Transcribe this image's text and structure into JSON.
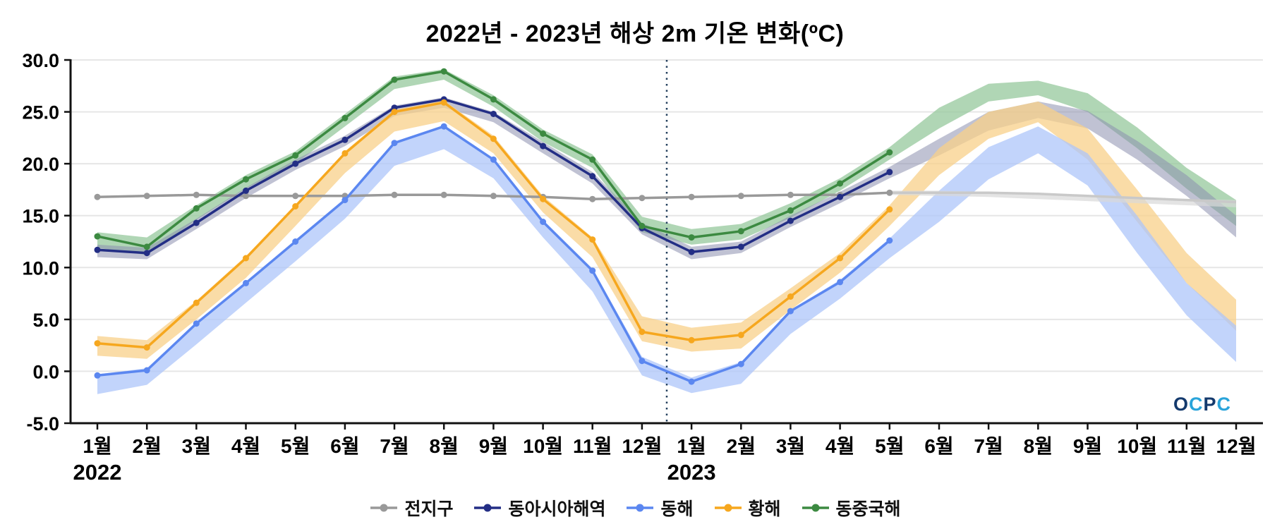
{
  "title": "2022년 - 2023년 해상 2m 기온 변화(ºC)",
  "watermark": "OCPC",
  "watermark_colors": [
    "#143a6d",
    "#2aa4da",
    "#143a6d",
    "#2aa4da"
  ],
  "chart_data": {
    "type": "line",
    "title": "2022년 - 2023년 해상 2m 기온 변화(ºC)",
    "ylim": [
      -5,
      30
    ],
    "y_ticks": [
      30,
      25,
      20,
      15,
      10,
      5,
      0,
      -5
    ],
    "grid": true,
    "legend_position": "bottom",
    "divider_index": 11.5,
    "x_tick_labels": [
      "1월",
      "2월",
      "3월",
      "4월",
      "5월",
      "6월",
      "7월",
      "8월",
      "9월",
      "10월",
      "11월",
      "12월",
      "1월",
      "2월",
      "3월",
      "4월",
      "5월",
      "6월",
      "7월",
      "8월",
      "9월",
      "10월",
      "11월",
      "12월"
    ],
    "year_labels": [
      {
        "label": "2022",
        "index": 0
      },
      {
        "label": "2023",
        "index": 12
      }
    ],
    "series": [
      {
        "id": "global",
        "name": "전지구",
        "color": "#999999",
        "forecast_color": "#c9c9c9",
        "band_color": "#d9d9d9",
        "band_opacity": 0.7,
        "values": [
          16.8,
          16.9,
          17.0,
          16.9,
          16.9,
          16.9,
          17.0,
          17.0,
          16.9,
          16.8,
          16.6,
          16.7,
          16.8,
          16.9,
          17.0,
          17.0,
          17.2,
          null,
          null,
          null,
          null,
          null,
          null,
          null
        ],
        "forecast_start": 16,
        "forecast_values": [
          17.2,
          17.2,
          17.2,
          17.1,
          16.9,
          16.7,
          16.5,
          16.3
        ],
        "band_lo": [
          null,
          null,
          null,
          null,
          null,
          null,
          null,
          null,
          null,
          null,
          null,
          null,
          null,
          null,
          null,
          null,
          17.0,
          16.9,
          16.8,
          16.6,
          16.4,
          16.2,
          16.0,
          15.8
        ],
        "band_hi": [
          null,
          null,
          null,
          null,
          null,
          null,
          null,
          null,
          null,
          null,
          null,
          null,
          null,
          null,
          null,
          null,
          17.4,
          17.4,
          17.3,
          17.2,
          17.0,
          16.8,
          16.6,
          16.5
        ]
      },
      {
        "id": "east-asia-seas",
        "name": "동아시아해역",
        "color": "#232e85",
        "band_color": "#8d8fae",
        "band_opacity": 0.55,
        "values": [
          11.7,
          11.4,
          14.3,
          17.4,
          20.0,
          22.3,
          25.4,
          26.2,
          24.8,
          21.7,
          18.8,
          13.8,
          11.5,
          12.0,
          14.5,
          16.8,
          19.2,
          null,
          null,
          null,
          null,
          null,
          null,
          null
        ],
        "band_lo": [
          11.0,
          10.8,
          13.7,
          16.7,
          19.4,
          21.7,
          24.6,
          25.4,
          24.0,
          21.0,
          18.1,
          13.2,
          10.8,
          11.4,
          13.9,
          16.2,
          18.6,
          20.8,
          23.2,
          24.4,
          23.4,
          20.4,
          16.9,
          12.9
        ],
        "band_hi": [
          12.2,
          11.9,
          14.7,
          17.7,
          20.4,
          22.7,
          25.6,
          26.4,
          25.0,
          22.1,
          19.2,
          14.3,
          12.0,
          12.5,
          15.0,
          17.3,
          19.7,
          22.4,
          25.0,
          26.0,
          25.1,
          22.2,
          18.9,
          15.0
        ]
      },
      {
        "id": "east-sea",
        "name": "동해",
        "color": "#5b87f0",
        "band_color": "#aec5fa",
        "band_opacity": 0.75,
        "values": [
          -0.4,
          0.1,
          4.6,
          8.5,
          12.5,
          16.5,
          22.0,
          23.6,
          20.4,
          14.4,
          9.7,
          1.0,
          -1.0,
          0.7,
          5.8,
          8.6,
          12.6,
          null,
          null,
          null,
          null,
          null,
          null,
          null
        ],
        "band_lo": [
          -2.2,
          -1.3,
          2.6,
          6.6,
          10.6,
          14.7,
          19.8,
          21.4,
          18.6,
          12.9,
          7.7,
          -0.4,
          -2.1,
          -1.2,
          3.6,
          7.0,
          10.9,
          14.4,
          18.5,
          21.0,
          17.9,
          11.4,
          5.4,
          0.9
        ],
        "band_hi": [
          -0.3,
          0.3,
          4.7,
          8.6,
          12.6,
          16.6,
          22.1,
          23.7,
          20.5,
          14.6,
          9.9,
          1.4,
          -0.6,
          0.9,
          5.9,
          8.8,
          12.8,
          17.4,
          21.6,
          23.6,
          21.0,
          15.0,
          8.5,
          4.4
        ]
      },
      {
        "id": "yellow-sea",
        "name": "황해",
        "color": "#f6a71e",
        "band_color": "#f8d089",
        "band_opacity": 0.75,
        "values": [
          2.7,
          2.3,
          6.6,
          10.9,
          15.9,
          21.0,
          25.0,
          25.9,
          22.4,
          16.6,
          12.7,
          3.8,
          3.0,
          3.5,
          7.2,
          10.9,
          15.6,
          null,
          null,
          null,
          null,
          null,
          null,
          null
        ],
        "band_lo": [
          1.5,
          1.2,
          5.0,
          9.0,
          14.0,
          19.1,
          23.1,
          24.1,
          21.0,
          15.3,
          11.0,
          2.9,
          1.9,
          2.2,
          5.9,
          9.5,
          14.0,
          18.9,
          22.4,
          24.0,
          20.4,
          14.4,
          8.5,
          3.9
        ],
        "band_hi": [
          3.4,
          3.0,
          6.8,
          11.1,
          16.0,
          21.2,
          25.2,
          26.1,
          22.7,
          16.9,
          12.9,
          5.3,
          4.2,
          4.7,
          8.0,
          11.4,
          16.0,
          21.5,
          25.0,
          26.0,
          23.4,
          17.5,
          11.4,
          6.9
        ]
      },
      {
        "id": "east-china-sea",
        "name": "동중국해",
        "color": "#3c8a41",
        "band_color": "#96c89c",
        "band_opacity": 0.75,
        "values": [
          13.0,
          12.0,
          15.7,
          18.5,
          20.8,
          24.4,
          28.1,
          28.9,
          26.2,
          22.9,
          20.4,
          14.0,
          12.9,
          13.5,
          15.5,
          18.1,
          21.1,
          null,
          null,
          null,
          null,
          null,
          null,
          null
        ],
        "band_lo": [
          11.9,
          11.2,
          14.6,
          17.6,
          20.0,
          23.6,
          27.2,
          28.1,
          25.5,
          22.1,
          19.6,
          13.4,
          12.2,
          12.7,
          14.8,
          17.4,
          20.4,
          23.4,
          26.0,
          26.6,
          25.0,
          21.5,
          17.6,
          14.0
        ],
        "band_hi": [
          13.4,
          12.9,
          16.0,
          18.9,
          21.2,
          24.8,
          28.4,
          29.1,
          26.6,
          23.3,
          20.9,
          14.9,
          13.7,
          14.2,
          16.2,
          18.6,
          21.6,
          25.4,
          27.7,
          28.0,
          26.8,
          23.5,
          19.6,
          16.5
        ]
      }
    ]
  }
}
